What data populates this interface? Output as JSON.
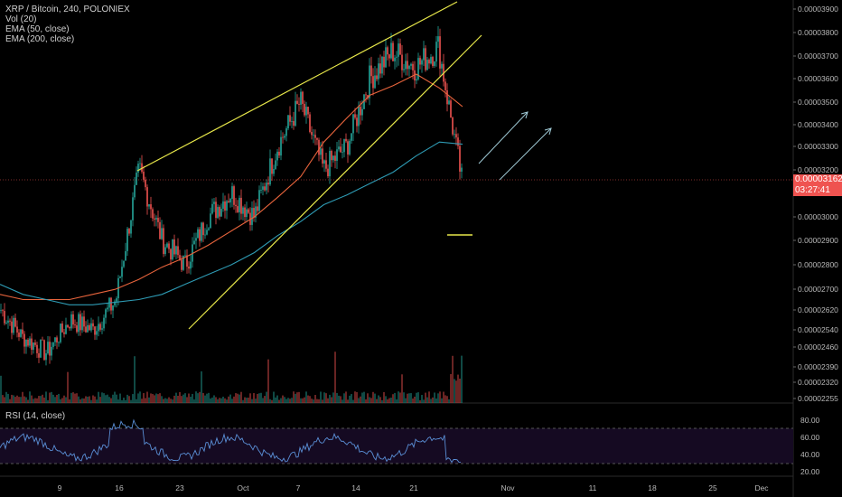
{
  "header": {
    "symbol": "XRP / Bitcoin, 240, POLONIEX",
    "indicators": [
      "Vol (20)",
      "EMA (50, close)",
      "EMA (200, close)"
    ]
  },
  "current_price": {
    "value": "0.00003162",
    "countdown": "03:27:41"
  },
  "rsi_title": "RSI (14, close)",
  "colors": {
    "up": "#26a69a",
    "down": "#ef5350",
    "ema50": "#e8643c",
    "ema200": "#2e9bb4",
    "trendline": "#e8e84a",
    "rsi": "#5a8fd6",
    "rsi_band": "#1a0a2a",
    "arrows": "#9ec8d4",
    "background": "#000000"
  },
  "chart_data": [
    {
      "type": "line",
      "title": "XRP / Bitcoin, 240, POLONIEX",
      "y_axis_ticks": [
        "0.00003900",
        "0.00003800",
        "0.00003700",
        "0.00003600",
        "0.00003500",
        "0.00003400",
        "0.00003300",
        "0.00003200",
        "0.00003100",
        "0.00003000",
        "0.00002900",
        "0.00002800",
        "0.00002700",
        "0.00002620",
        "0.00002540",
        "0.00002460",
        "0.00002390",
        "0.00002320",
        "0.00002255"
      ],
      "x_axis_ticks": [
        "9",
        "16",
        "23",
        "Oct",
        "7",
        "14",
        "21",
        "Nov",
        "11",
        "18",
        "25",
        "Dec"
      ],
      "ylim": [
        2.255e-05,
        3.9e-05
      ],
      "series": [
        {
          "name": "EMA (50, close)",
          "values": [
            2.68e-05,
            2.66e-05,
            2.66e-05,
            2.66e-05,
            2.68e-05,
            2.7e-05,
            2.74e-05,
            2.79e-05,
            2.83e-05,
            2.88e-05,
            2.94e-05,
            3e-05,
            3.08e-05,
            3.17e-05,
            3.32e-05,
            3.43e-05,
            3.53e-05,
            3.57e-05,
            3.62e-05,
            3.56e-05,
            3.48e-05
          ]
        },
        {
          "name": "EMA (200, close)",
          "values": [
            2.72e-05,
            2.68e-05,
            2.66e-05,
            2.64e-05,
            2.64e-05,
            2.65e-05,
            2.66e-05,
            2.68e-05,
            2.72e-05,
            2.76e-05,
            2.8e-05,
            2.85e-05,
            2.92e-05,
            2.98e-05,
            3.05e-05,
            3.09e-05,
            3.14e-05,
            3.19e-05,
            3.26e-05,
            3.32e-05,
            3.31e-05
          ]
        },
        {
          "name": "Price",
          "values": [
            2.62e-05,
            2.5e-05,
            2.44e-05,
            2.58e-05,
            2.54e-05,
            2.66e-05,
            3.2e-05,
            2.9e-05,
            2.8e-05,
            3e-05,
            3.1e-05,
            3e-05,
            3.3e-05,
            3.5e-05,
            3.2e-05,
            3.3e-05,
            3.6e-05,
            3.72e-05,
            3.65e-05,
            3.74e-05,
            3.16e-05
          ]
        }
      ],
      "annotations": {
        "current_price": "0.00003162"
      }
    },
    {
      "type": "line",
      "title": "RSI (14, close)",
      "y_axis_ticks": [
        "80.00",
        "60.00",
        "40.00",
        "20.00"
      ],
      "ylim": [
        15,
        90
      ],
      "bands": [
        30,
        70
      ]
    }
  ]
}
